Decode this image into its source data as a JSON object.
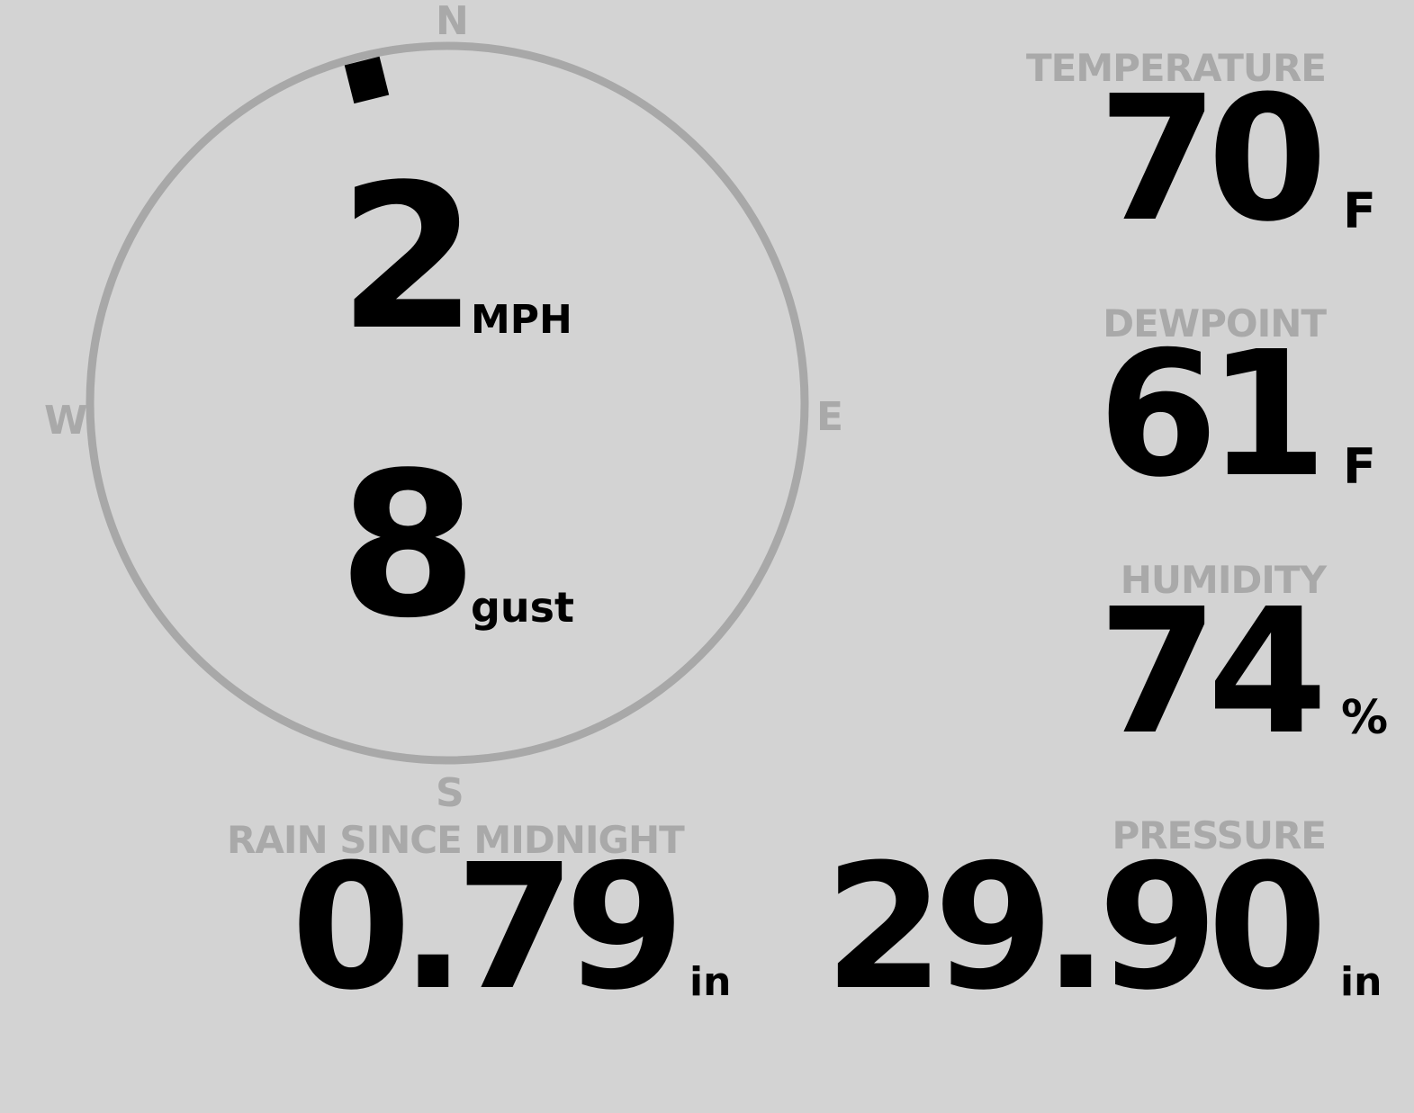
{
  "wind": {
    "speed": "2",
    "speed_unit": "MPH",
    "gust": "8",
    "gust_label": "gust",
    "direction_deg": 346,
    "cardinals": {
      "n": "N",
      "e": "E",
      "s": "S",
      "w": "W"
    }
  },
  "temperature": {
    "label": "TEMPERATURE",
    "value": "70",
    "unit": "F"
  },
  "dewpoint": {
    "label": "DEWPOINT",
    "value": "61",
    "unit": "F"
  },
  "humidity": {
    "label": "HUMIDITY",
    "value": "74",
    "unit": "%"
  },
  "rain": {
    "label": "RAIN SINCE MIDNIGHT",
    "value": "0.79",
    "unit": "in"
  },
  "pressure": {
    "label": "PRESSURE",
    "value": "29.90",
    "unit": "in"
  },
  "colors": {
    "background": "#d3d3d3",
    "label": "#a9a9a9",
    "value": "#000000",
    "ring": "#a8a8a8"
  }
}
